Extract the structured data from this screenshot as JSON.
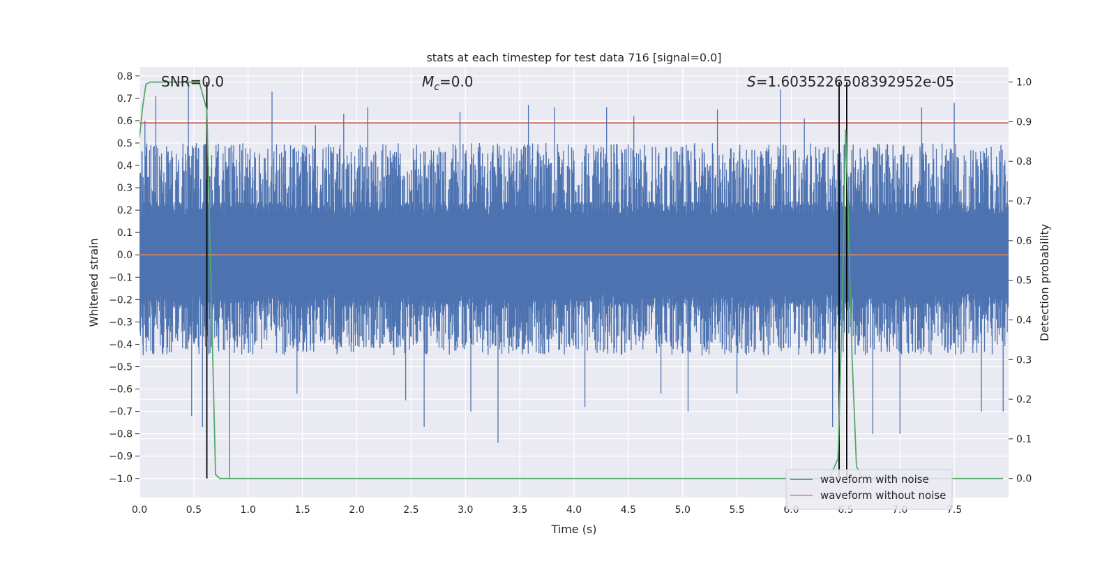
{
  "chart_data": {
    "type": "line",
    "title": "stats at each timestep for test data 716 [signal=0.0]",
    "xlabel": "Time (s)",
    "ylabel": "Whitened strain",
    "y2label": "Detection probability",
    "xlim": [
      0.0,
      8.0
    ],
    "ylim": [
      -1.085,
      0.84
    ],
    "y2lim": [
      -0.048,
      1.038
    ],
    "x_ticks": [
      0.0,
      0.5,
      1.0,
      1.5,
      2.0,
      2.5,
      3.0,
      3.5,
      4.0,
      4.5,
      5.0,
      5.5,
      6.0,
      6.5,
      7.0,
      7.5
    ],
    "y_ticks": [
      0.8,
      0.7,
      0.6,
      0.5,
      0.4,
      0.3,
      0.2,
      0.1,
      0.0,
      -0.1,
      -0.2,
      -0.3,
      -0.4,
      -0.5,
      -0.6,
      -0.7,
      -0.8,
      -0.9,
      -1.0
    ],
    "y2_ticks": [
      1.0,
      0.9,
      0.8,
      0.7,
      0.6,
      0.5,
      0.4,
      0.3,
      0.2,
      0.1,
      0.0
    ],
    "grid": true,
    "legend_position": "lower-right",
    "annotations": [
      {
        "label": "SNR=0.0"
      },
      {
        "label_prefix": "M",
        "label_sub": "c",
        "label_suffix": "=0.0"
      },
      {
        "label_prefix": "S",
        "label_suffix": "=1.6035226508392952e-05"
      }
    ],
    "threshold_strain": 0.59,
    "detection_marks_x": [
      0.62,
      6.44,
      6.51
    ],
    "series": [
      {
        "name": "waveform with noise",
        "color": "#4c72b0",
        "style": "dense noise",
        "core_amplitude": 0.24,
        "outer_amplitude_upper": 0.5,
        "outer_amplitude_lower": -0.45,
        "spikes": [
          {
            "x": 0.05,
            "y": 0.6
          },
          {
            "x": 0.15,
            "y": 0.71
          },
          {
            "x": 0.45,
            "y": 0.77
          },
          {
            "x": 0.48,
            "y": -0.72
          },
          {
            "x": 0.58,
            "y": -0.77
          },
          {
            "x": 0.83,
            "y": -1.0
          },
          {
            "x": 1.22,
            "y": 0.73
          },
          {
            "x": 1.45,
            "y": -0.62
          },
          {
            "x": 1.62,
            "y": 0.58
          },
          {
            "x": 1.88,
            "y": 0.63
          },
          {
            "x": 2.1,
            "y": 0.66
          },
          {
            "x": 2.45,
            "y": -0.65
          },
          {
            "x": 2.62,
            "y": -0.77
          },
          {
            "x": 2.95,
            "y": 0.64
          },
          {
            "x": 3.05,
            "y": -0.7
          },
          {
            "x": 3.3,
            "y": -0.84
          },
          {
            "x": 3.58,
            "y": 0.67
          },
          {
            "x": 3.82,
            "y": 0.66
          },
          {
            "x": 4.1,
            "y": -0.68
          },
          {
            "x": 4.3,
            "y": 0.66
          },
          {
            "x": 4.55,
            "y": 0.62
          },
          {
            "x": 4.8,
            "y": -0.62
          },
          {
            "x": 5.05,
            "y": -0.7
          },
          {
            "x": 5.32,
            "y": 0.65
          },
          {
            "x": 5.5,
            "y": -0.62
          },
          {
            "x": 5.9,
            "y": 0.74
          },
          {
            "x": 6.12,
            "y": 0.61
          },
          {
            "x": 6.38,
            "y": -0.77
          },
          {
            "x": 6.75,
            "y": -0.8
          },
          {
            "x": 7.0,
            "y": -0.8
          },
          {
            "x": 7.2,
            "y": 0.66
          },
          {
            "x": 7.5,
            "y": 0.68
          },
          {
            "x": 7.75,
            "y": -0.7
          },
          {
            "x": 7.95,
            "y": -0.7
          }
        ]
      },
      {
        "name": "waveform without noise",
        "color": "#dd8452",
        "x": [
          0.0,
          8.0
        ],
        "y": [
          0.0,
          0.0
        ]
      },
      {
        "name": "",
        "color": "#55a868",
        "axis": "right",
        "x": [
          0.0,
          0.03,
          0.06,
          0.1,
          0.2,
          0.3,
          0.4,
          0.5,
          0.55,
          0.62,
          0.7,
          0.74,
          0.8,
          1.0,
          2.0,
          3.0,
          4.0,
          5.0,
          6.0,
          6.35,
          6.43,
          6.47,
          6.5,
          6.52,
          6.56,
          6.6,
          6.66,
          6.7,
          7.0,
          7.5,
          7.95
        ],
        "y": [
          0.86,
          0.94,
          0.995,
          1.0,
          1.0,
          1.0,
          1.0,
          1.0,
          1.0,
          0.93,
          0.01,
          0.0,
          0.0,
          0.0,
          0.0,
          0.0,
          0.0,
          0.0,
          0.0,
          0.0,
          0.05,
          0.45,
          0.88,
          0.7,
          0.3,
          0.03,
          0.0,
          0.0,
          0.0,
          0.0,
          0.0
        ]
      }
    ]
  }
}
